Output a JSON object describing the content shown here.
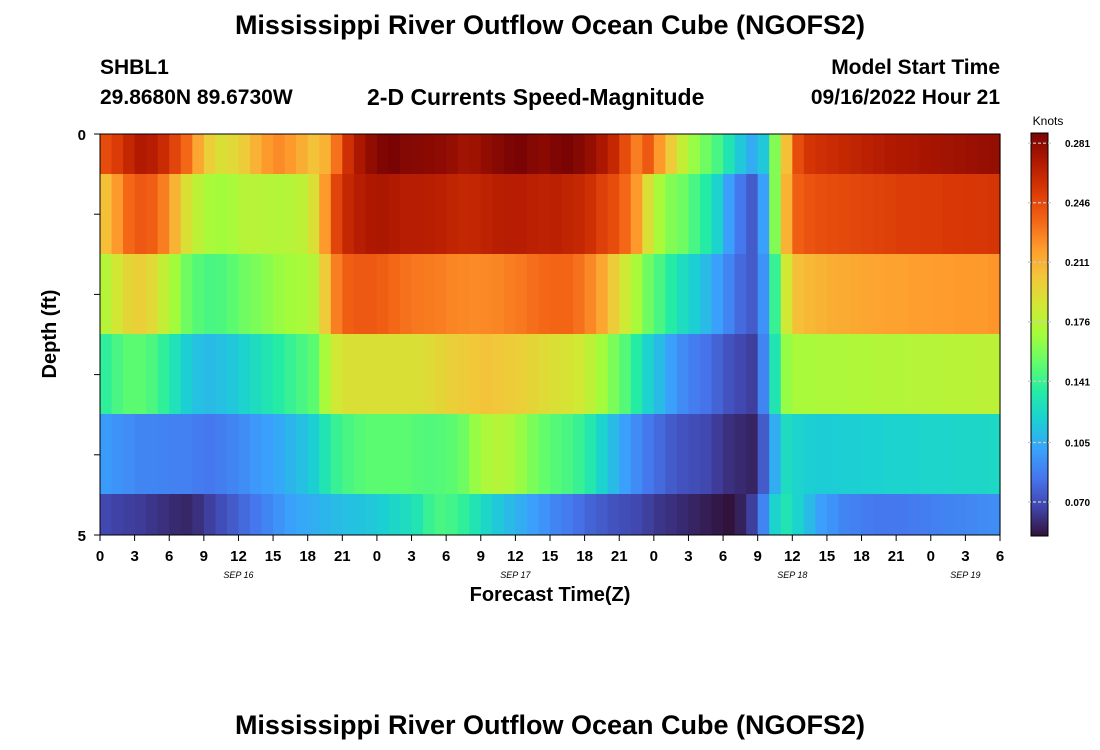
{
  "titles": {
    "main": "Mississippi River Outflow Ocean Cube (NGOFS2)",
    "repeat": "Mississippi River Outflow Ocean Cube (NGOFS2)"
  },
  "station": {
    "id": "SHBL1",
    "coords": "29.8680N  89.6730W"
  },
  "model": {
    "label": "Model Start Time",
    "start": "09/16/2022 Hour 21"
  },
  "colorbar": {
    "unit": "Knots",
    "ticks": [
      "0.281",
      "0.246",
      "0.211",
      "0.176",
      "0.141",
      "0.105",
      "0.070"
    ],
    "vmin": 0.05,
    "vmax": 0.287
  },
  "colors": {
    "scale": [
      "#30123b",
      "#4145ab",
      "#4675ed",
      "#39a2fc",
      "#1bcfd4",
      "#24eca6",
      "#61fc6c",
      "#a4fc3b",
      "#d1e834",
      "#f3c63a",
      "#fe9b2d",
      "#f36315",
      "#d93806",
      "#b11901",
      "#7a0403"
    ]
  },
  "chart_data": {
    "type": "heatmap",
    "title": "2-D Currents Speed-Magnitude",
    "xlabel": "Forecast Time(Z)",
    "ylabel": "Depth (ft)",
    "x_tick_labels": [
      "0",
      "3",
      "6",
      "9",
      "12",
      "15",
      "18",
      "21",
      "0",
      "3",
      "6",
      "9",
      "12",
      "15",
      "18",
      "21",
      "0",
      "3",
      "6",
      "9",
      "12",
      "15",
      "18",
      "21",
      "0",
      "3",
      "6"
    ],
    "date_labels": [
      {
        "label": "SEP 16",
        "at_hour": 12
      },
      {
        "label": "SEP 17",
        "at_hour": 36
      },
      {
        "label": "SEP 18",
        "at_hour": 60
      },
      {
        "label": "SEP 19",
        "at_hour": 75
      }
    ],
    "x_range_hours": [
      0,
      78
    ],
    "y_tick_labels": [
      "0",
      "5"
    ],
    "ylim": [
      0,
      5
    ],
    "layers": [
      {
        "depth_band": "layer 1 (surface)",
        "knots_hourly": [
          0.245,
          0.252,
          0.262,
          0.27,
          0.268,
          0.26,
          0.248,
          0.235,
          0.215,
          0.198,
          0.19,
          0.193,
          0.2,
          0.21,
          0.22,
          0.224,
          0.22,
          0.212,
          0.204,
          0.21,
          0.232,
          0.258,
          0.272,
          0.28,
          0.285,
          0.287,
          0.284,
          0.283,
          0.282,
          0.281,
          0.279,
          0.275,
          0.276,
          0.28,
          0.283,
          0.286,
          0.287,
          0.284,
          0.282,
          0.285,
          0.287,
          0.284,
          0.279,
          0.272,
          0.262,
          0.245,
          0.228,
          0.24,
          0.22,
          0.2,
          0.18,
          0.165,
          0.155,
          0.145,
          0.13,
          0.115,
          0.105,
          0.115,
          0.16,
          0.205,
          0.245,
          0.255,
          0.258,
          0.26,
          0.262,
          0.264,
          0.266,
          0.268,
          0.27,
          0.271,
          0.272,
          0.273,
          0.274,
          0.275,
          0.276,
          0.277,
          0.278,
          0.279
        ]
      },
      {
        "depth_band": "layer 2",
        "knots_hourly": [
          0.205,
          0.22,
          0.235,
          0.24,
          0.238,
          0.228,
          0.21,
          0.19,
          0.178,
          0.17,
          0.168,
          0.17,
          0.175,
          0.176,
          0.175,
          0.174,
          0.175,
          0.178,
          0.19,
          0.22,
          0.248,
          0.262,
          0.268,
          0.271,
          0.272,
          0.27,
          0.268,
          0.268,
          0.267,
          0.266,
          0.264,
          0.262,
          0.263,
          0.265,
          0.267,
          0.268,
          0.268,
          0.266,
          0.265,
          0.266,
          0.264,
          0.262,
          0.258,
          0.25,
          0.245,
          0.235,
          0.22,
          0.19,
          0.17,
          0.16,
          0.155,
          0.145,
          0.135,
          0.12,
          0.1,
          0.085,
          0.075,
          0.1,
          0.16,
          0.21,
          0.238,
          0.242,
          0.244,
          0.245,
          0.246,
          0.247,
          0.248,
          0.249,
          0.25,
          0.251,
          0.251,
          0.252,
          0.252,
          0.253,
          0.253,
          0.254,
          0.254,
          0.255
        ]
      },
      {
        "depth_band": "layer 3",
        "knots_hourly": [
          0.175,
          0.186,
          0.195,
          0.198,
          0.193,
          0.18,
          0.168,
          0.155,
          0.148,
          0.145,
          0.146,
          0.15,
          0.155,
          0.158,
          0.162,
          0.166,
          0.168,
          0.17,
          0.175,
          0.2,
          0.228,
          0.238,
          0.24,
          0.24,
          0.238,
          0.235,
          0.232,
          0.23,
          0.229,
          0.228,
          0.226,
          0.225,
          0.224,
          0.225,
          0.226,
          0.228,
          0.23,
          0.233,
          0.235,
          0.236,
          0.236,
          0.232,
          0.225,
          0.215,
          0.2,
          0.185,
          0.17,
          0.155,
          0.145,
          0.135,
          0.125,
          0.118,
          0.11,
          0.1,
          0.09,
          0.08,
          0.075,
          0.095,
          0.14,
          0.185,
          0.205,
          0.208,
          0.21,
          0.212,
          0.213,
          0.214,
          0.215,
          0.216,
          0.217,
          0.217,
          0.218,
          0.218,
          0.219,
          0.219,
          0.22,
          0.22,
          0.22,
          0.221
        ]
      },
      {
        "depth_band": "layer 4",
        "knots_hourly": [
          0.138,
          0.145,
          0.15,
          0.15,
          0.146,
          0.138,
          0.128,
          0.118,
          0.112,
          0.11,
          0.112,
          0.115,
          0.12,
          0.125,
          0.13,
          0.135,
          0.14,
          0.145,
          0.15,
          0.17,
          0.185,
          0.19,
          0.19,
          0.19,
          0.19,
          0.19,
          0.19,
          0.19,
          0.192,
          0.195,
          0.198,
          0.2,
          0.202,
          0.203,
          0.202,
          0.2,
          0.198,
          0.195,
          0.192,
          0.19,
          0.188,
          0.185,
          0.178,
          0.168,
          0.158,
          0.148,
          0.135,
          0.12,
          0.11,
          0.1,
          0.092,
          0.087,
          0.083,
          0.078,
          0.072,
          0.068,
          0.065,
          0.09,
          0.13,
          0.165,
          0.17,
          0.17,
          0.171,
          0.172,
          0.172,
          0.173,
          0.173,
          0.174,
          0.174,
          0.174,
          0.175,
          0.175,
          0.175,
          0.176,
          0.176,
          0.176,
          0.177,
          0.177
        ]
      },
      {
        "depth_band": "layer 5",
        "knots_hourly": [
          0.098,
          0.095,
          0.093,
          0.09,
          0.09,
          0.089,
          0.088,
          0.088,
          0.086,
          0.085,
          0.087,
          0.09,
          0.093,
          0.097,
          0.1,
          0.103,
          0.108,
          0.112,
          0.118,
          0.13,
          0.14,
          0.145,
          0.148,
          0.15,
          0.15,
          0.15,
          0.15,
          0.148,
          0.147,
          0.148,
          0.15,
          0.155,
          0.165,
          0.172,
          0.175,
          0.172,
          0.165,
          0.158,
          0.152,
          0.148,
          0.145,
          0.14,
          0.132,
          0.12,
          0.11,
          0.1,
          0.092,
          0.085,
          0.08,
          0.075,
          0.072,
          0.07,
          0.068,
          0.064,
          0.06,
          0.058,
          0.056,
          0.075,
          0.105,
          0.125,
          0.12,
          0.118,
          0.117,
          0.117,
          0.118,
          0.118,
          0.119,
          0.119,
          0.12,
          0.12,
          0.12,
          0.121,
          0.121,
          0.121,
          0.122,
          0.122,
          0.122,
          0.123
        ]
      },
      {
        "depth_band": "layer 6 (bottom)",
        "knots_hourly": [
          0.068,
          0.066,
          0.065,
          0.064,
          0.062,
          0.06,
          0.058,
          0.057,
          0.06,
          0.065,
          0.07,
          0.075,
          0.08,
          0.085,
          0.09,
          0.095,
          0.1,
          0.103,
          0.105,
          0.108,
          0.11,
          0.112,
          0.113,
          0.115,
          0.118,
          0.122,
          0.125,
          0.13,
          0.14,
          0.145,
          0.143,
          0.138,
          0.13,
          0.122,
          0.115,
          0.11,
          0.105,
          0.1,
          0.095,
          0.09,
          0.086,
          0.082,
          0.078,
          0.075,
          0.072,
          0.07,
          0.068,
          0.065,
          0.062,
          0.06,
          0.058,
          0.056,
          0.054,
          0.052,
          0.05,
          0.055,
          0.065,
          0.09,
          0.12,
          0.13,
          0.12,
          0.11,
          0.1,
          0.095,
          0.09,
          0.088,
          0.086,
          0.085,
          0.085,
          0.085,
          0.086,
          0.087,
          0.088,
          0.089,
          0.09,
          0.091,
          0.092,
          0.093
        ]
      }
    ]
  }
}
